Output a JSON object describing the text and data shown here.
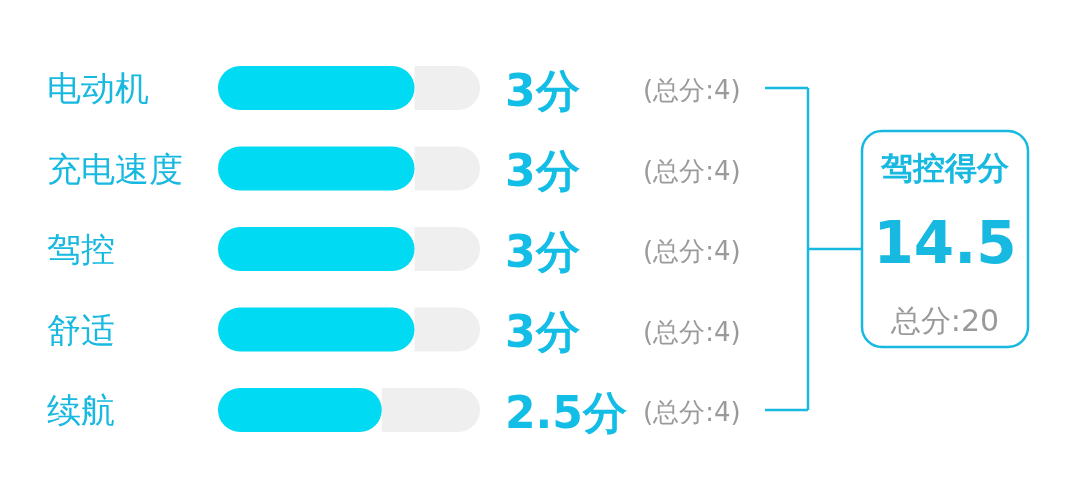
{
  "chart_data": [
    {
      "type": "bar",
      "orientation": "horizontal",
      "stacked": true,
      "tick_labels": "y",
      "xlim": [
        0,
        4
      ],
      "categories": [
        "电动机",
        "充电速度",
        "驾控",
        "舒适",
        "续航"
      ],
      "series": [
        {
          "color": "#00daf2",
          "values": [
            3,
            3,
            3,
            3,
            2.5
          ],
          "value_labels": [
            "3分",
            "3分",
            "3分",
            "3分",
            "2.5分"
          ]
        },
        {
          "color": "#efefef",
          "values": [
            1,
            1,
            1,
            1,
            1.5
          ]
        }
      ],
      "annotations": [
        "(总分:4)",
        "(总分:4)",
        "(总分:4)",
        "(总分:4)",
        "(总分:4)"
      ]
    },
    {
      "type": "other",
      "title": "驾控得分",
      "annotations": [
        "14.5",
        "总分:20"
      ]
    }
  ]
}
